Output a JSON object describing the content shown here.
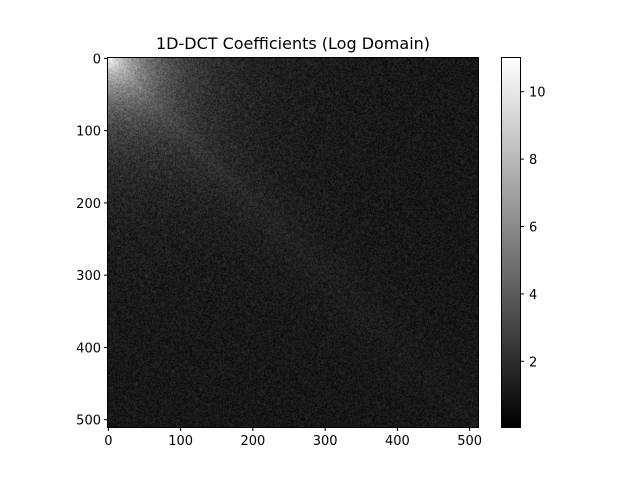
{
  "chart_data": {
    "type": "heatmap",
    "title": "1D-DCT Coefficients (Log Domain)",
    "xlabel": "",
    "ylabel": "",
    "colormap": "gray",
    "image_size": [
      512,
      512
    ],
    "xlim": [
      0,
      511
    ],
    "ylim": [
      511,
      0
    ],
    "x_ticks": [
      0,
      100,
      200,
      300,
      400,
      500
    ],
    "y_ticks": [
      0,
      100,
      200,
      300,
      400,
      500
    ],
    "x_tick_labels": [
      "0",
      "100",
      "200",
      "300",
      "400",
      "500"
    ],
    "y_tick_labels": [
      "0",
      "100",
      "200",
      "300",
      "400",
      "500"
    ],
    "colorbar": {
      "range": [
        0.05,
        11
      ],
      "ticks": [
        2,
        4,
        6,
        8,
        10
      ],
      "tick_labels": [
        "2",
        "4",
        "6",
        "8",
        "10"
      ]
    },
    "value_description": {
      "background_level": 1.0,
      "noise_amplitude": 0.8,
      "corner_peak": 10.8,
      "corner_falloff": 60,
      "diagonal_level": 2.2,
      "diagonal_falloff": 150
    },
    "grid": false
  }
}
